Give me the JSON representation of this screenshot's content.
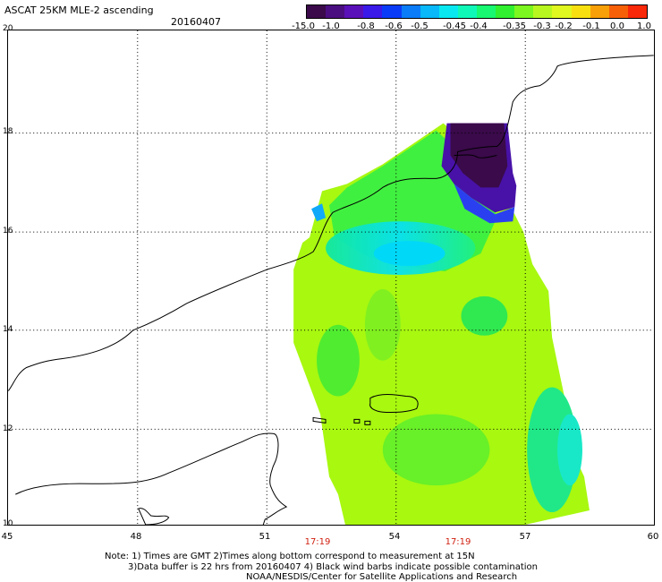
{
  "header": {
    "title": "ASCAT 25KM MLE-2 ascending",
    "date": "20160407"
  },
  "colorbar": {
    "colors": [
      "#3a0a4a",
      "#4a0e80",
      "#5a10b8",
      "#3a1ae8",
      "#0a3cf8",
      "#0a7cf8",
      "#08b8f8",
      "#08e8f0",
      "#10f8b8",
      "#18f870",
      "#30f030",
      "#7cf820",
      "#b8f820",
      "#e0f820",
      "#f8e010",
      "#f8a008",
      "#f86008",
      "#f82808"
    ],
    "labels": [
      "-15.0",
      "-1.0",
      "-0.8",
      "-0.6",
      "-0.5",
      "-0.45",
      "-0.4",
      "-0.35",
      "-0.3",
      "-0.2",
      "-0.1",
      "0.0",
      "1.0"
    ]
  },
  "map": {
    "lat_labels": [
      "20",
      "18",
      "16",
      "14",
      "12",
      "10"
    ],
    "lon_labels": [
      "45",
      "48",
      "51",
      "54",
      "57",
      "60"
    ],
    "time_labels": [
      "17:19",
      "17:19"
    ]
  },
  "notes": {
    "line1": "Note: 1) Times are GMT 2)Times along bottom correspond to measurement at 15N",
    "line2": "3)Data buffer is 22 hrs from 20160407 4) Black wind barbs indicate possible contamination",
    "line3": "NOAA/NESDIS/Center for Satellite Applications and Research"
  }
}
